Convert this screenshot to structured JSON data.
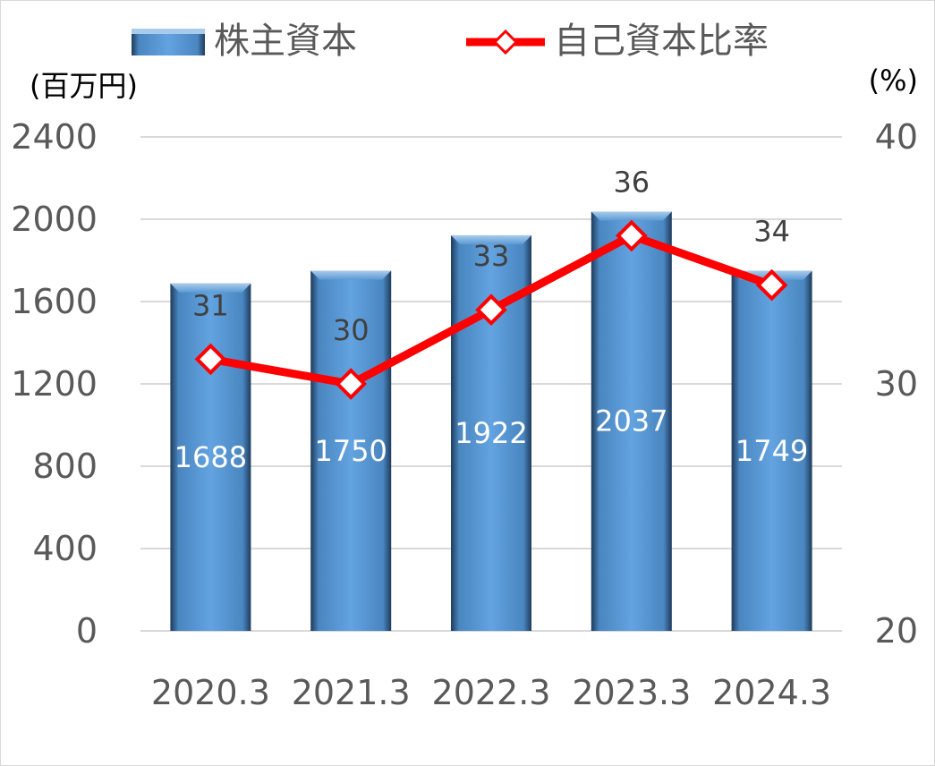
{
  "chart_data": {
    "type": "bar+line",
    "categories": [
      "2020.3",
      "2021.3",
      "2022.3",
      "2023.3",
      "2024.3"
    ],
    "series": [
      {
        "name": "株主資本",
        "type": "bar",
        "axis": "left",
        "values": [
          1688,
          1750,
          1922,
          2037,
          1749
        ]
      },
      {
        "name": "自己資本比率",
        "type": "line",
        "axis": "right",
        "values": [
          31,
          30,
          33,
          36,
          34
        ]
      }
    ],
    "left_axis": {
      "unit": "(百万円)",
      "ylim": [
        0,
        2400
      ],
      "ticks": [
        "0",
        "400",
        "800",
        "1200",
        "1600",
        "2000",
        "2400"
      ]
    },
    "right_axis": {
      "unit": "(%)",
      "ylim": [
        20,
        40
      ],
      "ticks": [
        "20",
        "30",
        "40"
      ]
    },
    "grid": true,
    "legend_position": "top",
    "colors": {
      "bar_fill": "#5b9bd5",
      "bar_top": "#8fbbe3",
      "bar_edge_dark": "#1f3b5c",
      "line": "#ff0000",
      "marker_fill": "#ffffff",
      "grid": "#d9d9d9"
    }
  }
}
